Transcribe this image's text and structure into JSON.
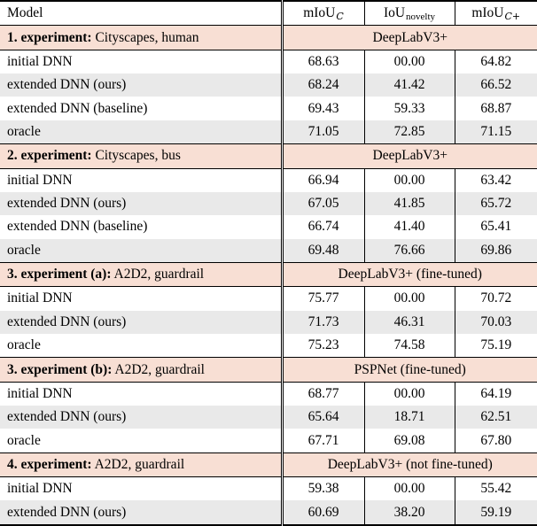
{
  "colors": {
    "section_bg": "#f8dfd4",
    "alt_row_bg": "#e9e9e9",
    "border": "#000000"
  },
  "header": {
    "model": "Model",
    "cols": [
      {
        "base": "mIoU",
        "sub": "C"
      },
      {
        "base": "IoU",
        "sub": "novelty"
      },
      {
        "base": "mIoU",
        "sub": "C+"
      }
    ]
  },
  "sections": [
    {
      "label_bold": "1. experiment:",
      "label_rest": "Cityscapes, human",
      "network": "DeepLabV3+",
      "rows": [
        {
          "model": "initial DNN",
          "vals": [
            "68.63",
            "00.00",
            "64.82"
          ]
        },
        {
          "model": "extended DNN (ours)",
          "vals": [
            "68.24",
            "41.42",
            "66.52"
          ]
        },
        {
          "model": "extended DNN (baseline)",
          "vals": [
            "69.43",
            "59.33",
            "68.87"
          ]
        },
        {
          "model": "oracle",
          "vals": [
            "71.05",
            "72.85",
            "71.15"
          ]
        }
      ]
    },
    {
      "label_bold": "2. experiment:",
      "label_rest": "Cityscapes, bus",
      "network": "DeepLabV3+",
      "rows": [
        {
          "model": "initial DNN",
          "vals": [
            "66.94",
            "00.00",
            "63.42"
          ]
        },
        {
          "model": "extended DNN (ours)",
          "vals": [
            "67.05",
            "41.85",
            "65.72"
          ]
        },
        {
          "model": "extended DNN (baseline)",
          "vals": [
            "66.74",
            "41.40",
            "65.41"
          ]
        },
        {
          "model": "oracle",
          "vals": [
            "69.48",
            "76.66",
            "69.86"
          ]
        }
      ]
    },
    {
      "label_bold": "3. experiment (a):",
      "label_rest": "A2D2, guardrail",
      "network": "DeepLabV3+ (fine-tuned)",
      "rows": [
        {
          "model": "initial DNN",
          "vals": [
            "75.77",
            "00.00",
            "70.72"
          ]
        },
        {
          "model": "extended DNN (ours)",
          "vals": [
            "71.73",
            "46.31",
            "70.03"
          ]
        },
        {
          "model": "oracle",
          "vals": [
            "75.23",
            "74.58",
            "75.19"
          ]
        }
      ]
    },
    {
      "label_bold": "3. experiment (b):",
      "label_rest": "A2D2, guardrail",
      "network": "PSPNet (fine-tuned)",
      "rows": [
        {
          "model": "initial DNN",
          "vals": [
            "68.77",
            "00.00",
            "64.19"
          ]
        },
        {
          "model": "extended DNN (ours)",
          "vals": [
            "65.64",
            "18.71",
            "62.51"
          ]
        },
        {
          "model": "oracle",
          "vals": [
            "67.71",
            "69.08",
            "67.80"
          ]
        }
      ]
    },
    {
      "label_bold": "4. experiment:",
      "label_rest": "A2D2, guardrail",
      "network": "DeepLabV3+ (not fine-tuned)",
      "rows": [
        {
          "model": "initial DNN",
          "vals": [
            "59.38",
            "00.00",
            "55.42"
          ]
        },
        {
          "model": "extended DNN (ours)",
          "vals": [
            "60.69",
            "38.20",
            "59.19"
          ]
        }
      ]
    }
  ]
}
